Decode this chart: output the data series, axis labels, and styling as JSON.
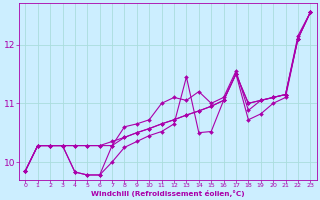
{
  "xlabel": "Windchill (Refroidissement éolien,°C)",
  "bg_color": "#cceeff",
  "line_color": "#aa00aa",
  "grid_color": "#aadddd",
  "xlim": [
    -0.5,
    23.5
  ],
  "ylim": [
    9.7,
    12.7
  ],
  "yticks": [
    10,
    11,
    12
  ],
  "xticks": [
    0,
    1,
    2,
    3,
    4,
    5,
    6,
    7,
    8,
    9,
    10,
    11,
    12,
    13,
    14,
    15,
    16,
    17,
    18,
    19,
    20,
    21,
    22,
    23
  ],
  "series": [
    [
      9.85,
      10.28,
      10.28,
      10.28,
      10.28,
      10.28,
      10.28,
      10.35,
      10.42,
      10.5,
      10.57,
      10.65,
      10.72,
      10.8,
      10.87,
      10.95,
      11.05,
      11.5,
      11.0,
      11.05,
      11.1,
      11.15,
      12.1,
      12.55
    ],
    [
      9.85,
      10.28,
      10.28,
      10.28,
      9.83,
      9.78,
      9.78,
      10.0,
      10.25,
      10.35,
      10.45,
      10.52,
      10.65,
      11.45,
      10.5,
      10.52,
      11.05,
      11.5,
      10.72,
      10.82,
      11.0,
      11.1,
      12.1,
      12.55
    ],
    [
      9.85,
      10.28,
      10.28,
      10.28,
      9.83,
      9.78,
      9.78,
      10.28,
      10.6,
      10.65,
      10.72,
      11.0,
      11.1,
      11.05,
      11.2,
      11.0,
      11.1,
      11.55,
      10.88,
      11.05,
      11.1,
      11.15,
      12.15,
      12.55
    ],
    [
      9.85,
      10.28,
      10.28,
      10.28,
      10.28,
      10.28,
      10.28,
      10.28,
      10.42,
      10.5,
      10.57,
      10.65,
      10.72,
      10.8,
      10.87,
      10.95,
      11.05,
      11.5,
      11.0,
      11.05,
      11.1,
      11.15,
      12.1,
      12.55
    ]
  ],
  "marker": "D",
  "marker_size": 2.0,
  "linewidth": 0.8
}
